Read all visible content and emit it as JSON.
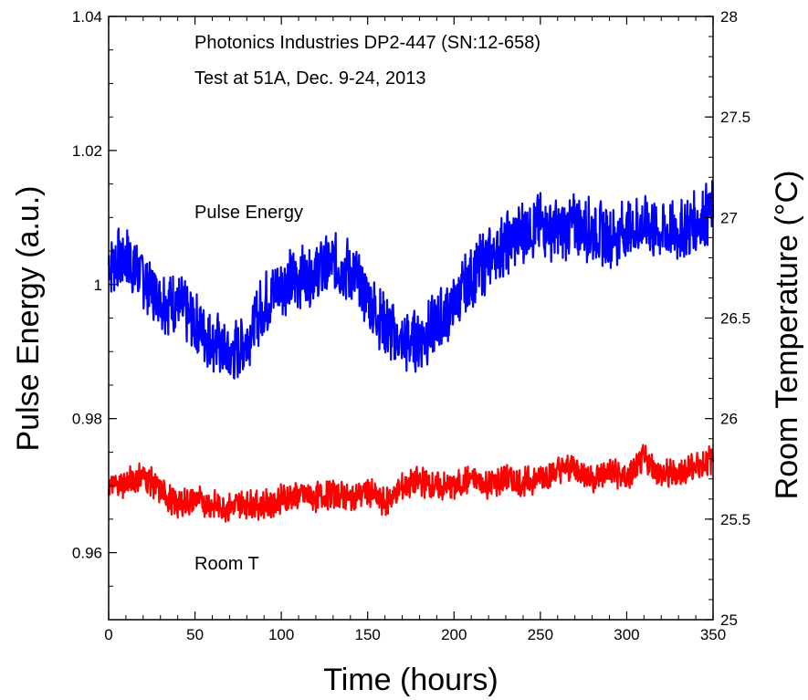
{
  "chart_data": {
    "type": "line",
    "title": "Photonics Industries DP2-447 (SN:12-658)",
    "subtitle": "Test at 51A, Dec. 9-24, 2013",
    "xlabel": "Time (hours)",
    "ylabel": "Pulse Energy (a.u.)",
    "y2label": "Room Temperature (°C)",
    "xlim": [
      0,
      350
    ],
    "ylim": [
      0.95,
      1.04
    ],
    "y2lim": [
      25,
      28
    ],
    "xticks": [
      "0",
      "50",
      "100",
      "150",
      "200",
      "250",
      "300",
      "350"
    ],
    "yticks": [
      "0.96",
      "0.98",
      "1",
      "1.02",
      "1.04"
    ],
    "y2ticks": [
      "25",
      "25.5",
      "26",
      "26.5",
      "27",
      "27.5",
      "28"
    ],
    "grid": false,
    "series": [
      {
        "name": "Pulse Energy",
        "axis": "left",
        "color": "#0000ff",
        "x": [
          0,
          10,
          20,
          30,
          40,
          50,
          60,
          70,
          80,
          90,
          100,
          110,
          120,
          130,
          140,
          150,
          160,
          170,
          180,
          190,
          200,
          210,
          220,
          230,
          240,
          250,
          260,
          270,
          280,
          290,
          300,
          310,
          320,
          330,
          340,
          350
        ],
        "y": [
          1.003,
          1.004,
          1.001,
          0.998,
          0.997,
          0.994,
          0.992,
          0.989,
          0.992,
          0.997,
          1.0,
          1.001,
          1.002,
          1.003,
          1.002,
          0.998,
          0.994,
          0.991,
          0.992,
          0.994,
          0.997,
          1.001,
          1.004,
          1.006,
          1.008,
          1.009,
          1.008,
          1.009,
          1.008,
          1.007,
          1.008,
          1.009,
          1.008,
          1.008,
          1.009,
          1.011
        ],
        "band": 0.0055
      },
      {
        "name": "Room T",
        "axis": "right",
        "color": "#ff0000",
        "x": [
          0,
          10,
          20,
          30,
          40,
          50,
          60,
          70,
          80,
          90,
          100,
          110,
          120,
          130,
          140,
          150,
          160,
          170,
          180,
          190,
          200,
          210,
          220,
          230,
          240,
          250,
          260,
          270,
          280,
          290,
          300,
          310,
          320,
          330,
          340,
          350
        ],
        "y": [
          25.66,
          25.68,
          25.72,
          25.64,
          25.57,
          25.6,
          25.57,
          25.56,
          25.58,
          25.57,
          25.6,
          25.62,
          25.61,
          25.63,
          25.6,
          25.64,
          25.58,
          25.66,
          25.69,
          25.66,
          25.66,
          25.7,
          25.67,
          25.7,
          25.68,
          25.71,
          25.74,
          25.76,
          25.7,
          25.74,
          25.7,
          25.8,
          25.72,
          25.73,
          25.76,
          25.8
        ],
        "band": 0.085
      }
    ]
  }
}
